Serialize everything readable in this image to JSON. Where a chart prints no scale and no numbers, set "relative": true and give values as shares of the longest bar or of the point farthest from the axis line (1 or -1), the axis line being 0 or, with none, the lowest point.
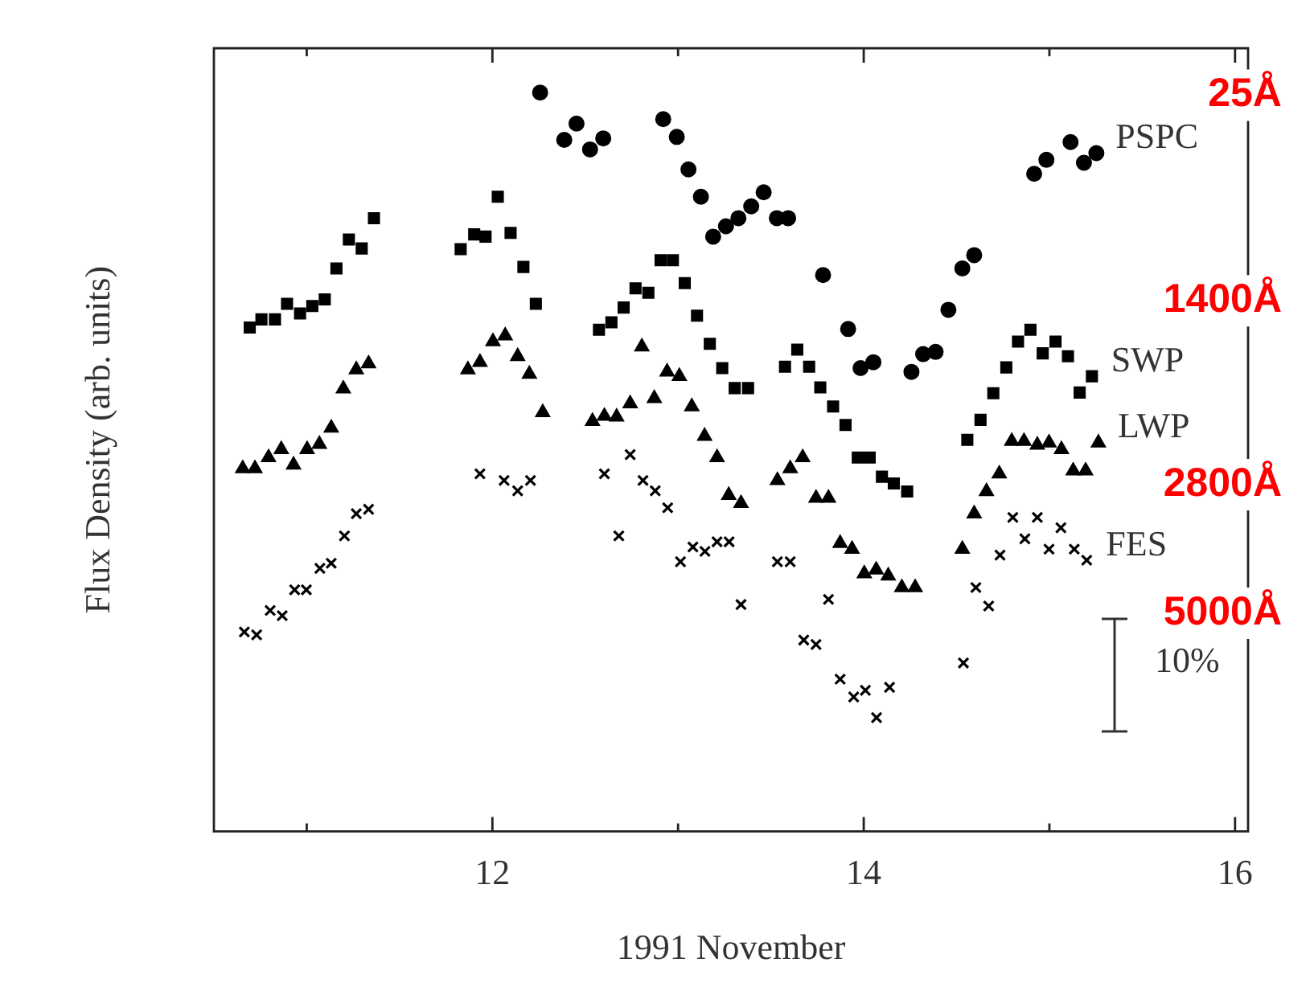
{
  "chart_data": {
    "type": "scatter",
    "relative": true,
    "xlabel": "1991 November",
    "ylabel": "Flux Density (arb. units)",
    "xlim": [
      10.5,
      16.07
    ],
    "xticks": [
      {
        "value": 11,
        "label": null
      },
      12,
      {
        "value": 13,
        "label": null
      },
      14,
      {
        "value": 15,
        "label": null
      },
      16
    ],
    "annotations": [
      "25Å",
      "1400Å",
      "2800Å",
      "5000Å",
      "10%"
    ],
    "series": [
      {
        "name": "PSPC",
        "color": "#000000",
        "marker": "circle",
        "x": [
          12.257,
          12.387,
          12.453,
          12.526,
          12.597,
          12.92,
          12.993,
          13.056,
          13.123,
          13.189,
          13.258,
          13.325,
          13.394,
          13.461,
          13.532,
          13.593,
          13.781,
          13.916,
          13.983,
          14.052,
          14.257,
          14.32,
          14.387,
          14.456,
          14.531,
          14.595,
          14.918,
          14.984,
          15.114,
          15.186,
          15.253
        ],
        "values": [
          1.0,
          0.936,
          0.958,
          0.923,
          0.938,
          0.964,
          0.94,
          0.896,
          0.859,
          0.805,
          0.819,
          0.83,
          0.846,
          0.865,
          0.83,
          0.83,
          0.753,
          0.68,
          0.627,
          0.635,
          0.622,
          0.646,
          0.649,
          0.706,
          0.762,
          0.78,
          0.89,
          0.909,
          0.933,
          0.905,
          0.918
        ]
      },
      {
        "name": "SWP",
        "color": "#000000",
        "marker": "square",
        "x": [
          10.693,
          10.756,
          10.829,
          10.894,
          10.964,
          11.03,
          11.097,
          11.16,
          11.227,
          11.296,
          11.362,
          11.829,
          11.902,
          11.963,
          12.029,
          12.098,
          12.167,
          12.234,
          12.574,
          12.641,
          12.707,
          12.771,
          12.84,
          12.906,
          12.972,
          13.036,
          13.102,
          13.171,
          13.238,
          13.305,
          13.377,
          13.576,
          13.642,
          13.706,
          13.766,
          13.835,
          13.902,
          13.968,
          14.032,
          14.098,
          14.162,
          14.234,
          14.558,
          14.629,
          14.698,
          14.768,
          14.831,
          14.898,
          14.964,
          15.033,
          15.1,
          15.163,
          15.229
        ],
        "values": [
          0.682,
          0.693,
          0.693,
          0.714,
          0.701,
          0.711,
          0.72,
          0.762,
          0.801,
          0.789,
          0.83,
          0.788,
          0.808,
          0.805,
          0.859,
          0.81,
          0.764,
          0.714,
          0.679,
          0.689,
          0.709,
          0.735,
          0.729,
          0.773,
          0.773,
          0.742,
          0.698,
          0.66,
          0.627,
          0.6,
          0.6,
          0.629,
          0.652,
          0.629,
          0.601,
          0.575,
          0.55,
          0.506,
          0.506,
          0.48,
          0.471,
          0.46,
          0.53,
          0.557,
          0.593,
          0.628,
          0.663,
          0.679,
          0.647,
          0.663,
          0.643,
          0.594,
          0.616
        ]
      },
      {
        "name": "LWP",
        "color": "#000000",
        "marker": "triangle",
        "x": [
          10.655,
          10.721,
          10.794,
          10.863,
          10.929,
          11.002,
          11.068,
          11.132,
          11.197,
          11.267,
          11.333,
          11.868,
          11.933,
          12.003,
          12.069,
          12.136,
          12.199,
          12.271,
          12.539,
          12.603,
          12.669,
          12.742,
          12.805,
          12.872,
          12.941,
          13.007,
          13.074,
          13.143,
          13.21,
          13.273,
          13.339,
          13.535,
          13.604,
          13.671,
          13.743,
          13.81,
          13.873,
          13.937,
          14.003,
          14.067,
          14.132,
          14.205,
          14.277,
          14.531,
          14.595,
          14.661,
          14.73,
          14.797,
          14.863,
          14.935,
          14.998,
          15.065,
          15.128,
          15.195,
          15.264
        ],
        "values": [
          0.491,
          0.491,
          0.506,
          0.517,
          0.496,
          0.517,
          0.524,
          0.546,
          0.599,
          0.625,
          0.633,
          0.625,
          0.635,
          0.663,
          0.671,
          0.643,
          0.619,
          0.567,
          0.555,
          0.562,
          0.561,
          0.579,
          0.656,
          0.586,
          0.622,
          0.616,
          0.575,
          0.535,
          0.506,
          0.455,
          0.444,
          0.475,
          0.491,
          0.506,
          0.451,
          0.451,
          0.39,
          0.382,
          0.349,
          0.354,
          0.346,
          0.33,
          0.33,
          0.382,
          0.43,
          0.46,
          0.484,
          0.528,
          0.528,
          0.523,
          0.526,
          0.517,
          0.488,
          0.488,
          0.526
        ]
      },
      {
        "name": "FES",
        "color": "#000000",
        "marker": "cross",
        "x": [
          10.664,
          10.73,
          10.803,
          10.868,
          10.935,
          10.998,
          11.071,
          11.132,
          11.203,
          11.267,
          11.333,
          11.933,
          12.063,
          12.136,
          12.205,
          12.603,
          12.681,
          12.742,
          12.811,
          12.877,
          12.944,
          13.013,
          13.08,
          13.145,
          13.21,
          13.275,
          13.339,
          13.535,
          13.604,
          13.677,
          13.743,
          13.81,
          13.873,
          13.946,
          14.009,
          14.069,
          14.139,
          14.537,
          14.604,
          14.673,
          14.734,
          14.803,
          14.868,
          14.935,
          14.998,
          15.062,
          15.134,
          15.201
        ],
        "values": [
          0.27,
          0.266,
          0.299,
          0.292,
          0.327,
          0.327,
          0.356,
          0.363,
          0.4,
          0.43,
          0.436,
          0.484,
          0.475,
          0.461,
          0.475,
          0.484,
          0.4,
          0.51,
          0.475,
          0.461,
          0.438,
          0.365,
          0.385,
          0.379,
          0.392,
          0.392,
          0.307,
          0.365,
          0.365,
          0.259,
          0.253,
          0.314,
          0.206,
          0.182,
          0.191,
          0.154,
          0.195,
          0.228,
          0.33,
          0.305,
          0.374,
          0.425,
          0.396,
          0.425,
          0.382,
          0.411,
          0.382,
          0.367
        ]
      }
    ]
  }
}
